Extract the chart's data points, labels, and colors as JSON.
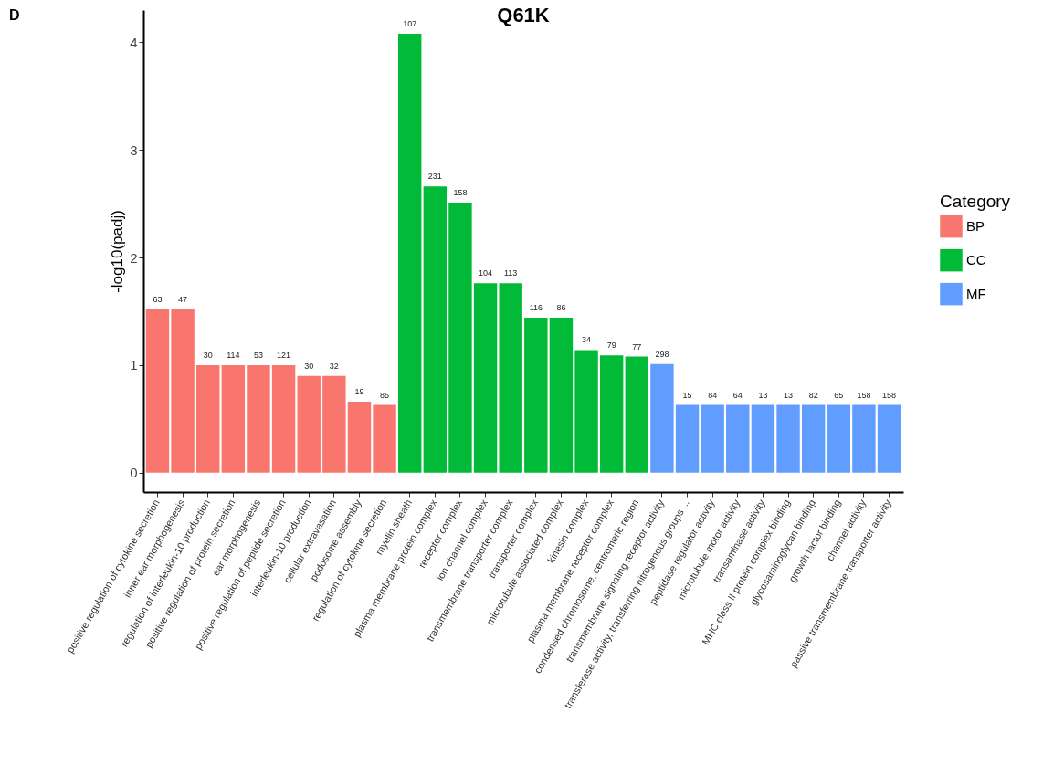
{
  "chart_data": {
    "type": "bar",
    "title": "Q61K",
    "ylabel": "-log10(padj)",
    "legend_title": "Category",
    "legend": "right",
    "grid": false,
    "annotations": [
      "D",
      {
        "text": "63",
        "x": "positive regulation of cytokine secretion",
        "y": 1.52
      },
      {
        "text": "47",
        "x": "inner ear morphogenesis",
        "y": 1.52
      },
      {
        "text": "30",
        "x": "regulation of interleukin-10 production",
        "y": 1.0
      },
      {
        "text": "114",
        "x": "positive regulation of protein secretion",
        "y": 1.0
      },
      {
        "text": "53",
        "x": "ear morphogenesis",
        "y": 1.0
      },
      {
        "text": "121",
        "x": "positive regulation of peptide secretion",
        "y": 1.0
      },
      {
        "text": "30",
        "x": "interleukin-10 production",
        "y": 0.9
      },
      {
        "text": "32",
        "x": "cellular extravasation",
        "y": 0.9
      },
      {
        "text": "19",
        "x": "podosome assembly",
        "y": 0.66
      },
      {
        "text": "85",
        "x": "regulation of cytokine secretion",
        "y": 0.63
      },
      {
        "text": "107",
        "x": "myelin sheath",
        "y": 4.08
      },
      {
        "text": "231",
        "x": "plasma membrane protein complex",
        "y": 2.66
      },
      {
        "text": "158",
        "x": "receptor complex",
        "y": 2.51
      },
      {
        "text": "104",
        "x": "ion channel complex",
        "y": 1.76
      },
      {
        "text": "113",
        "x": "transmembrane transporter complex",
        "y": 1.76
      },
      {
        "text": "116",
        "x": "transporter complex",
        "y": 1.44
      },
      {
        "text": "86",
        "x": "microtubule associated complex",
        "y": 1.44
      },
      {
        "text": "34",
        "x": "kinesin complex",
        "y": 1.14
      },
      {
        "text": "79",
        "x": "plasma membrane receptor complex",
        "y": 1.09
      },
      {
        "text": "77",
        "x": "condensed chromosome, centromeric region",
        "y": 1.08
      },
      {
        "text": "298",
        "x": "transmembrane signaling receptor activity",
        "y": 1.01
      },
      {
        "text": "15",
        "x": "transferase activity, transferring nitrogenous groups ...",
        "y": 0.63
      },
      {
        "text": "84",
        "x": "peptidase regulator activity",
        "y": 0.63
      },
      {
        "text": "64",
        "x": "microtubule motor activity",
        "y": 0.63
      },
      {
        "text": "13",
        "x": "transaminase activity",
        "y": 0.63
      },
      {
        "text": "13",
        "x": "MHC class II protein complex binding",
        "y": 0.63
      },
      {
        "text": "82",
        "x": "glycosaminoglycan binding",
        "y": 0.63
      },
      {
        "text": "65",
        "x": "growth factor binding",
        "y": 0.63
      },
      {
        "text": "158",
        "x": "channel activity",
        "y": 0.63
      },
      {
        "text": "158",
        "x": "passive transmembrane transporter activity",
        "y": 0.63
      }
    ],
    "categories": [
      "positive regulation of cytokine secretion",
      "inner ear morphogenesis",
      "regulation of interleukin-10 production",
      "positive regulation of protein secretion",
      "ear morphogenesis",
      "positive regulation of peptide secretion",
      "interleukin-10 production",
      "cellular extravasation",
      "podosome assembly",
      "regulation of cytokine secretion",
      "myelin sheath",
      "plasma membrane protein complex",
      "receptor complex",
      "ion channel complex",
      "transmembrane transporter complex",
      "transporter complex",
      "microtubule associated complex",
      "kinesin complex",
      "plasma membrane receptor complex",
      "condensed chromosome, centromeric region",
      "transmembrane signaling receptor activity",
      "transferase activity, transferring nitrogenous groups ...",
      "peptidase regulator activity",
      "microtubule motor activity",
      "transaminase activity",
      "MHC class II protein complex binding",
      "glycosaminoglycan binding",
      "growth factor binding",
      "channel activity",
      "passive transmembrane transporter activity"
    ],
    "ylim": [
      -0.18,
      4.3
    ],
    "yticks": [
      0,
      1,
      2,
      3,
      4
    ],
    "series": [
      {
        "name": "BP",
        "color": "#f8766d",
        "values": [
          1.52,
          1.52,
          1.0,
          1.0,
          1.0,
          1.0,
          0.9,
          0.9,
          0.66,
          0.63,
          null,
          null,
          null,
          null,
          null,
          null,
          null,
          null,
          null,
          null,
          null,
          null,
          null,
          null,
          null,
          null,
          null,
          null,
          null,
          null
        ]
      },
      {
        "name": "CC",
        "color": "#00ba38",
        "values": [
          null,
          null,
          null,
          null,
          null,
          null,
          null,
          null,
          null,
          null,
          4.08,
          2.66,
          2.51,
          1.76,
          1.76,
          1.44,
          1.44,
          1.14,
          1.09,
          1.08,
          null,
          null,
          null,
          null,
          null,
          null,
          null,
          null,
          null,
          null
        ]
      },
      {
        "name": "MF",
        "color": "#619cff",
        "values": [
          null,
          null,
          null,
          null,
          null,
          null,
          null,
          null,
          null,
          null,
          null,
          null,
          null,
          null,
          null,
          null,
          null,
          null,
          null,
          null,
          1.01,
          0.63,
          0.63,
          0.63,
          0.63,
          0.63,
          0.63,
          0.63,
          0.63,
          0.63
        ]
      }
    ]
  }
}
